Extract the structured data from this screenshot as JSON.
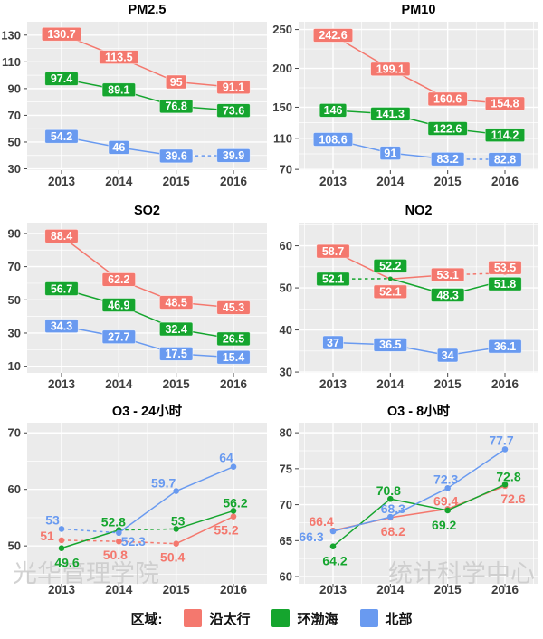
{
  "colors": {
    "red": "#F4786E",
    "green": "#15A52E",
    "blue": "#699AF0",
    "panel_bg": "#EBEBEB",
    "grid": "#FFFFFF",
    "tick_text": "#3E3E3E",
    "title_text": "#000000",
    "watermark": "#CBCBCB",
    "label_text": "#FFFFFF"
  },
  "legend": {
    "label": "区域:",
    "items": [
      {
        "name": "沿太行",
        "color_key": "red"
      },
      {
        "name": "环渤海",
        "color_key": "green"
      },
      {
        "name": "北部",
        "color_key": "blue"
      }
    ]
  },
  "years": [
    "2013",
    "2014",
    "2015",
    "2016"
  ],
  "watermarks": {
    "left": "光华管理学院",
    "right": "统计科学中心"
  },
  "chart_data": [
    {
      "type": "line",
      "title": "PM2.5",
      "label_style": "box",
      "categories": [
        "2013",
        "2014",
        "2015",
        "2016"
      ],
      "yticks": [
        30,
        50,
        70,
        90,
        110,
        130
      ],
      "yminor": [
        40,
        60,
        80,
        100,
        120
      ],
      "ylim": [
        29,
        140
      ],
      "series": [
        {
          "name": "沿太行",
          "color_key": "red",
          "values": [
            130.7,
            113.5,
            95,
            91.1
          ],
          "labels": [
            "130.7",
            "113.5",
            "95",
            "91.1"
          ],
          "dashed_segments": [],
          "label_offsets": [
            [
              0,
              0
            ],
            [
              0,
              0
            ],
            [
              0,
              0
            ],
            [
              0,
              0
            ]
          ]
        },
        {
          "name": "环渤海",
          "color_key": "green",
          "values": [
            97.4,
            89.1,
            76.8,
            73.6
          ],
          "labels": [
            "97.4",
            "89.1",
            "76.8",
            "73.6"
          ],
          "dashed_segments": [],
          "label_offsets": [
            [
              0,
              0
            ],
            [
              0,
              0
            ],
            [
              0,
              0
            ],
            [
              0,
              0
            ]
          ]
        },
        {
          "name": "北部",
          "color_key": "blue",
          "values": [
            54.2,
            46,
            39.6,
            39.9
          ],
          "labels": [
            "54.2",
            "46",
            "39.6",
            "39.9"
          ],
          "dashed_segments": [
            2
          ],
          "label_offsets": [
            [
              0,
              0
            ],
            [
              0,
              0
            ],
            [
              0,
              0
            ],
            [
              0,
              0
            ]
          ]
        }
      ]
    },
    {
      "type": "line",
      "title": "PM10",
      "label_style": "box",
      "categories": [
        "2013",
        "2014",
        "2015",
        "2016"
      ],
      "yticks": [
        70,
        110,
        150,
        200,
        250
      ],
      "yminor": [
        90,
        130,
        175,
        225
      ],
      "ylim": [
        69,
        260
      ],
      "series": [
        {
          "name": "沿太行",
          "color_key": "red",
          "values": [
            242.6,
            199.1,
            160.6,
            154.8
          ],
          "labels": [
            "242.6",
            "199.1",
            "160.6",
            "154.8"
          ],
          "dashed_segments": [],
          "label_offsets": [
            [
              0,
              0
            ],
            [
              0,
              0
            ],
            [
              0,
              0
            ],
            [
              0,
              0
            ]
          ]
        },
        {
          "name": "环渤海",
          "color_key": "green",
          "values": [
            146,
            141.3,
            122.6,
            114.2
          ],
          "labels": [
            "146",
            "141.3",
            "122.6",
            "114.2"
          ],
          "dashed_segments": [],
          "label_offsets": [
            [
              0,
              0
            ],
            [
              0,
              0
            ],
            [
              0,
              0
            ],
            [
              0,
              0
            ]
          ]
        },
        {
          "name": "北部",
          "color_key": "blue",
          "values": [
            108.6,
            91,
            83.2,
            82.8
          ],
          "labels": [
            "108.6",
            "91",
            "83.2",
            "82.8"
          ],
          "dashed_segments": [
            2
          ],
          "label_offsets": [
            [
              0,
              0
            ],
            [
              0,
              0
            ],
            [
              0,
              0
            ],
            [
              0,
              0
            ]
          ]
        }
      ]
    },
    {
      "type": "line",
      "title": "SO2",
      "label_style": "box",
      "categories": [
        "2013",
        "2014",
        "2015",
        "2016"
      ],
      "yticks": [
        10,
        30,
        50,
        70,
        90
      ],
      "yminor": [
        20,
        40,
        60,
        80
      ],
      "ylim": [
        6,
        96.5
      ],
      "series": [
        {
          "name": "沿太行",
          "color_key": "red",
          "values": [
            88.4,
            62.2,
            48.5,
            45.3
          ],
          "labels": [
            "88.4",
            "62.2",
            "48.5",
            "45.3"
          ],
          "dashed_segments": [],
          "label_offsets": [
            [
              0,
              0
            ],
            [
              0,
              0
            ],
            [
              0,
              0
            ],
            [
              0,
              0
            ]
          ]
        },
        {
          "name": "环渤海",
          "color_key": "green",
          "values": [
            56.7,
            46.9,
            32.4,
            26.5
          ],
          "labels": [
            "56.7",
            "46.9",
            "32.4",
            "26.5"
          ],
          "dashed_segments": [],
          "label_offsets": [
            [
              0,
              0
            ],
            [
              0,
              0
            ],
            [
              0,
              0
            ],
            [
              0,
              0
            ]
          ]
        },
        {
          "name": "北部",
          "color_key": "blue",
          "values": [
            34.3,
            27.7,
            17.5,
            15.4
          ],
          "labels": [
            "34.3",
            "27.7",
            "17.5",
            "15.4"
          ],
          "dashed_segments": [],
          "label_offsets": [
            [
              0,
              0
            ],
            [
              0,
              0
            ],
            [
              0,
              0
            ],
            [
              0,
              0
            ]
          ]
        }
      ]
    },
    {
      "type": "line",
      "title": "NO2",
      "label_style": "box",
      "categories": [
        "2013",
        "2014",
        "2015",
        "2016"
      ],
      "yticks": [
        30,
        40,
        50,
        60
      ],
      "yminor": [
        35,
        45,
        55,
        65
      ],
      "ylim": [
        29.8,
        65.5
      ],
      "series": [
        {
          "name": "沿太行",
          "color_key": "red",
          "values": [
            58.7,
            52.1,
            53.1,
            53.5
          ],
          "labels": [
            "58.7",
            "52.1",
            "53.1",
            "53.5"
          ],
          "dashed_segments": [
            2
          ],
          "label_offsets": [
            [
              0,
              0
            ],
            [
              0,
              14
            ],
            [
              0,
              0
            ],
            [
              0,
              -6
            ]
          ]
        },
        {
          "name": "环渤海",
          "color_key": "green",
          "values": [
            52.1,
            52.2,
            48.3,
            51.8
          ],
          "labels": [
            "52.1",
            "52.2",
            "48.3",
            "51.8"
          ],
          "dashed_segments": [
            0
          ],
          "label_offsets": [
            [
              0,
              0
            ],
            [
              0,
              -14
            ],
            [
              0,
              0
            ],
            [
              0,
              4
            ]
          ]
        },
        {
          "name": "北部",
          "color_key": "blue",
          "values": [
            37,
            36.5,
            34,
            36.1
          ],
          "labels": [
            "37",
            "36.5",
            "34",
            "36.1"
          ],
          "dashed_segments": [],
          "label_offsets": [
            [
              0,
              0
            ],
            [
              0,
              0
            ],
            [
              0,
              0
            ],
            [
              0,
              0
            ]
          ]
        }
      ]
    },
    {
      "type": "line",
      "title": "O3 - 24小时",
      "label_style": "text",
      "categories": [
        "2013",
        "2014",
        "2015",
        "2016"
      ],
      "yticks": [
        50,
        60,
        70
      ],
      "yminor": [
        45,
        55,
        65
      ],
      "ylim": [
        43.3,
        71.8
      ],
      "watermark": {
        "text": "光华管理学院",
        "anchor": "start"
      },
      "series": [
        {
          "name": "沿太行",
          "color_key": "red",
          "values": [
            51,
            50.8,
            50.4,
            55.2
          ],
          "labels": [
            "51",
            "50.8",
            "50.4",
            "55.2"
          ],
          "dashed_segments": [
            0,
            1
          ],
          "label_offsets": [
            [
              -16,
              -4
            ],
            [
              -4,
              16
            ],
            [
              -4,
              16
            ],
            [
              -8,
              16
            ]
          ]
        },
        {
          "name": "环渤海",
          "color_key": "green",
          "values": [
            49.6,
            52.8,
            53,
            56.2
          ],
          "labels": [
            "49.6",
            "52.8",
            "53",
            "56.2"
          ],
          "dashed_segments": [
            1
          ],
          "label_offsets": [
            [
              6,
              17
            ],
            [
              -6,
              -8
            ],
            [
              2,
              -8
            ],
            [
              2,
              -8
            ]
          ]
        },
        {
          "name": "北部",
          "color_key": "blue",
          "values": [
            53,
            52.3,
            59.7,
            64
          ],
          "labels": [
            "53",
            "52.3",
            "59.7",
            "64"
          ],
          "dashed_segments": [
            0
          ],
          "label_offsets": [
            [
              -10,
              -9
            ],
            [
              16,
              10
            ],
            [
              -14,
              -8
            ],
            [
              -8,
              -9
            ]
          ]
        }
      ]
    },
    {
      "type": "line",
      "title": "O3 - 8小时",
      "label_style": "text",
      "categories": [
        "2013",
        "2014",
        "2015",
        "2016"
      ],
      "yticks": [
        60,
        65,
        70,
        75,
        80
      ],
      "yminor": [
        62.5,
        67.5,
        72.5,
        77.5
      ],
      "ylim": [
        59,
        81.4
      ],
      "watermark": {
        "text": "统计科学中心",
        "anchor": "end"
      },
      "series": [
        {
          "name": "沿太行",
          "color_key": "red",
          "values": [
            66.4,
            68.2,
            69.4,
            72.6
          ],
          "labels": [
            "66.4",
            "68.2",
            "69.4",
            "72.6"
          ],
          "dashed_segments": [],
          "label_offsets": [
            [
              -13,
              -9
            ],
            [
              3,
              16
            ],
            [
              -2,
              -8
            ],
            [
              9,
              15
            ]
          ]
        },
        {
          "name": "环渤海",
          "color_key": "green",
          "values": [
            64.2,
            70.8,
            69.2,
            72.8
          ],
          "labels": [
            "64.2",
            "70.8",
            "69.2",
            "72.8"
          ],
          "dashed_segments": [],
          "label_offsets": [
            [
              2,
              17
            ],
            [
              -2,
              -8
            ],
            [
              -4,
              17
            ],
            [
              4,
              -8
            ]
          ]
        },
        {
          "name": "北部",
          "color_key": "blue",
          "values": [
            66.3,
            68.3,
            72.3,
            77.7
          ],
          "labels": [
            "66.3",
            "68.3",
            "72.3",
            "77.7"
          ],
          "dashed_segments": [],
          "label_offsets": [
            [
              -24,
              7
            ],
            [
              3,
              -8
            ],
            [
              -2,
              -9
            ],
            [
              -4,
              -9
            ]
          ]
        }
      ]
    }
  ]
}
